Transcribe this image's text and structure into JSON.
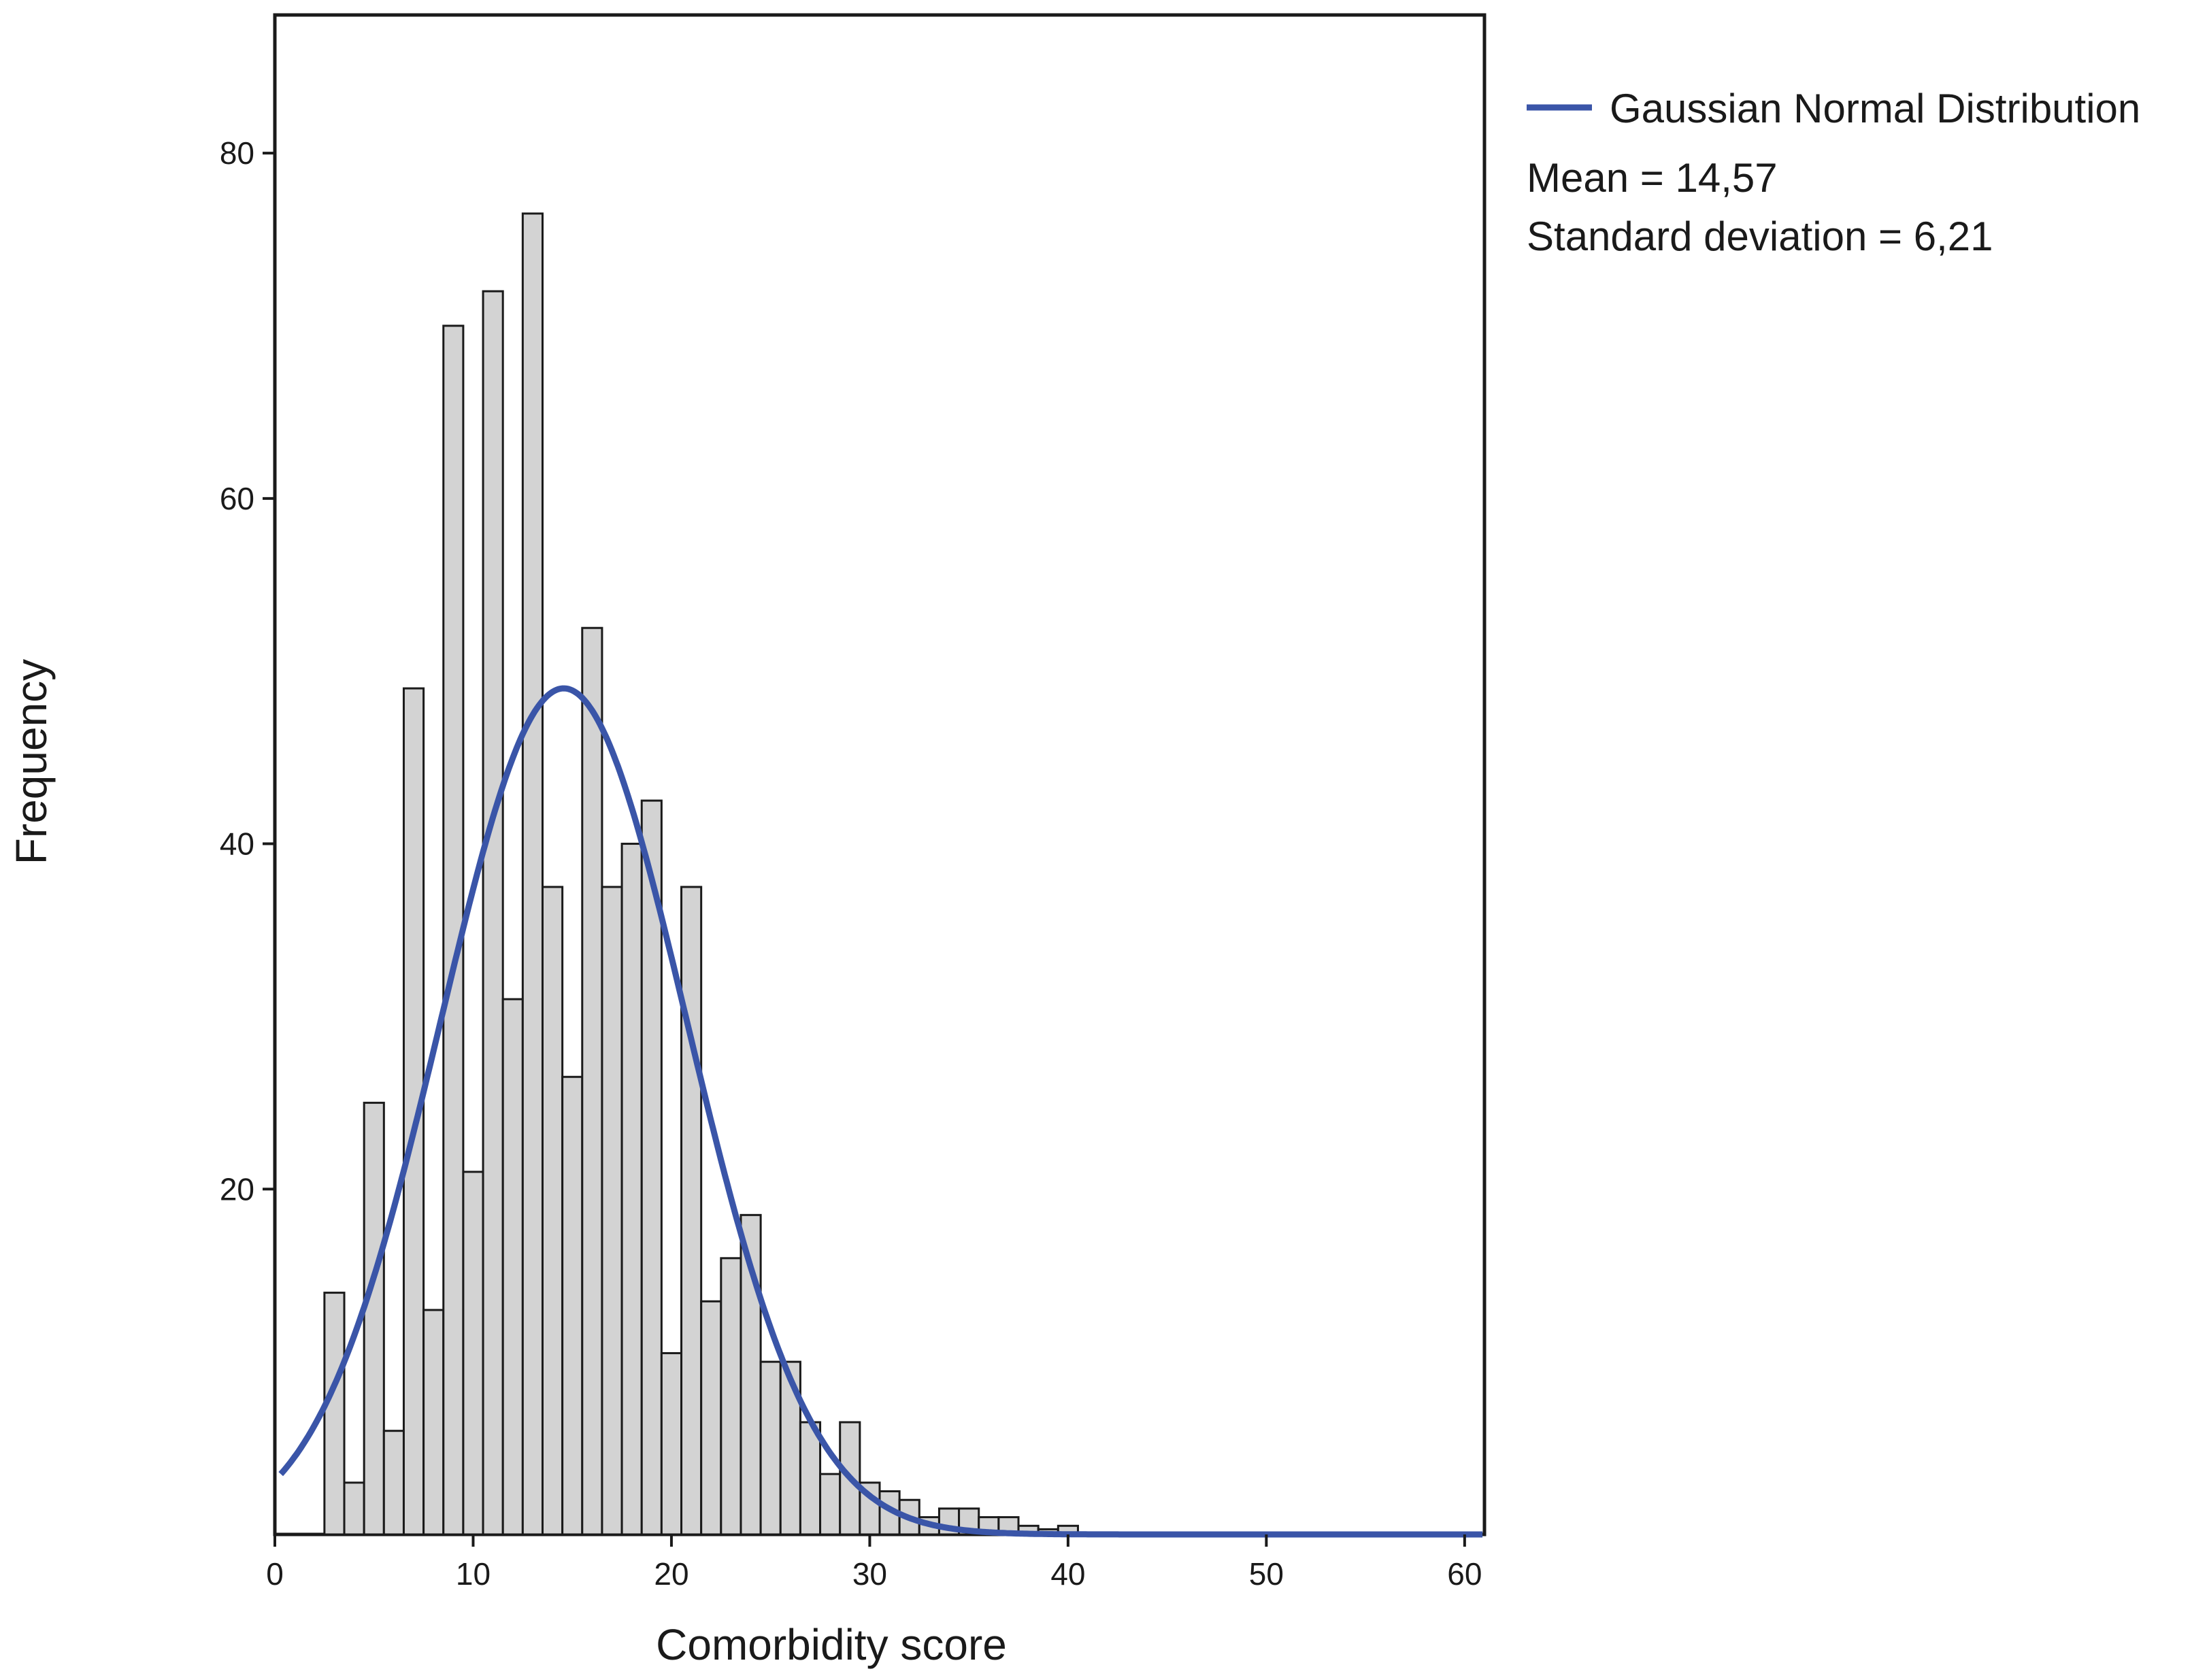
{
  "chart_data": {
    "type": "bar",
    "title": "",
    "xlabel": "Comorbidity score",
    "ylabel": "Frequency",
    "xlim": [
      0,
      61
    ],
    "ylim": [
      0,
      88
    ],
    "xticks": [
      0,
      10,
      20,
      30,
      40,
      50,
      60
    ],
    "yticks": [
      20,
      40,
      60,
      80
    ],
    "grid": false,
    "bin_width": 1,
    "bins": [
      {
        "x": 3,
        "y": 14
      },
      {
        "x": 4,
        "y": 3
      },
      {
        "x": 5,
        "y": 25
      },
      {
        "x": 6,
        "y": 6
      },
      {
        "x": 7,
        "y": 49
      },
      {
        "x": 8,
        "y": 13
      },
      {
        "x": 9,
        "y": 70
      },
      {
        "x": 10,
        "y": 21
      },
      {
        "x": 11,
        "y": 72
      },
      {
        "x": 12,
        "y": 31
      },
      {
        "x": 13,
        "y": 76.5
      },
      {
        "x": 14,
        "y": 37.5
      },
      {
        "x": 15,
        "y": 26.5
      },
      {
        "x": 16,
        "y": 52.5
      },
      {
        "x": 17,
        "y": 37.5
      },
      {
        "x": 18,
        "y": 40
      },
      {
        "x": 19,
        "y": 42.5
      },
      {
        "x": 20,
        "y": 10.5
      },
      {
        "x": 21,
        "y": 37.5
      },
      {
        "x": 22,
        "y": 13.5
      },
      {
        "x": 23,
        "y": 16
      },
      {
        "x": 24,
        "y": 18.5
      },
      {
        "x": 25,
        "y": 10
      },
      {
        "x": 26,
        "y": 10
      },
      {
        "x": 27,
        "y": 6.5
      },
      {
        "x": 28,
        "y": 3.5
      },
      {
        "x": 29,
        "y": 6.5
      },
      {
        "x": 30,
        "y": 3
      },
      {
        "x": 31,
        "y": 2.5
      },
      {
        "x": 32,
        "y": 2
      },
      {
        "x": 33,
        "y": 1
      },
      {
        "x": 34,
        "y": 1.5
      },
      {
        "x": 35,
        "y": 1.5
      },
      {
        "x": 36,
        "y": 1
      },
      {
        "x": 37,
        "y": 1
      },
      {
        "x": 38,
        "y": 0.5
      },
      {
        "x": 39,
        "y": 0.3
      },
      {
        "x": 40,
        "y": 0.5
      }
    ],
    "series": [
      {
        "name": "Gaussian Normal Distribution",
        "type": "line",
        "color": "#3a55a8",
        "peak": 49,
        "mean": 14.57,
        "sd": 6.21
      }
    ],
    "bar_fill": "#d3d3d3",
    "bar_stroke": "#1a1a1a",
    "legend": {
      "placement": "right",
      "entry": "Gaussian Normal Distribution",
      "mean_text": "Mean  = 14,57",
      "sd_text": "Standard deviation = 6,21"
    }
  }
}
